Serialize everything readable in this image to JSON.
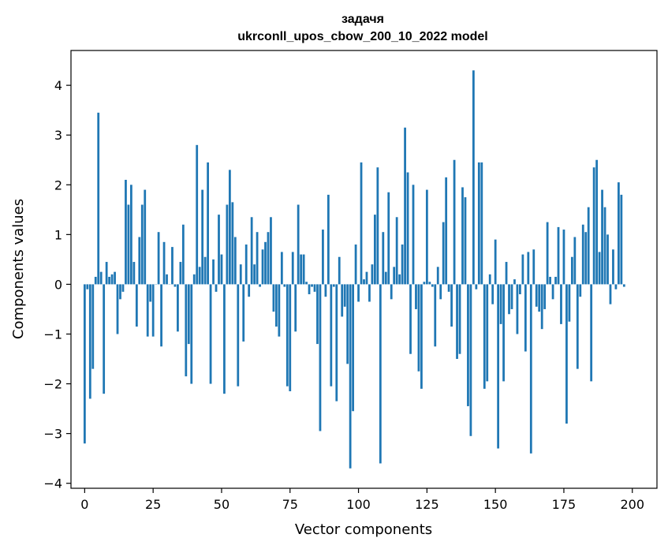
{
  "chart_data": {
    "type": "bar",
    "title_line1": "задачя",
    "title_line2": "ukrconll_upos_cbow_200_10_2022 model",
    "xlabel": "Vector components",
    "ylabel": "Components values",
    "xlim": [
      -5,
      209
    ],
    "ylim": [
      -4.1,
      4.7
    ],
    "xticks": [
      0,
      25,
      50,
      75,
      100,
      125,
      150,
      175,
      200
    ],
    "xtick_labels": [
      "0",
      "25",
      "50",
      "75",
      "100",
      "125",
      "150",
      "175",
      "200"
    ],
    "yticks": [
      -4,
      -3,
      -2,
      -1,
      0,
      1,
      2,
      3,
      4
    ],
    "ytick_labels": [
      "−4",
      "−3",
      "−2",
      "−1",
      "0",
      "1",
      "2",
      "3",
      "4"
    ],
    "grid": false,
    "bar_color": "#1f77b4",
    "values": [
      -3.2,
      -0.1,
      -2.3,
      -1.7,
      0.15,
      3.45,
      0.25,
      -2.2,
      0.45,
      0.15,
      0.2,
      0.25,
      -1.0,
      -0.3,
      -0.15,
      2.1,
      1.6,
      2.0,
      0.45,
      -0.85,
      0.95,
      1.6,
      1.9,
      -1.05,
      -0.35,
      -1.05,
      0.0,
      1.05,
      -1.25,
      0.85,
      0.2,
      0.0,
      0.75,
      -0.05,
      -0.95,
      0.45,
      1.2,
      -1.85,
      -1.2,
      -2.0,
      0.2,
      2.8,
      0.35,
      1.9,
      0.55,
      2.45,
      -2.0,
      0.5,
      -0.15,
      1.4,
      0.6,
      -2.2,
      1.6,
      2.3,
      1.65,
      0.95,
      -2.05,
      0.4,
      -1.15,
      0.8,
      -0.25,
      1.35,
      0.4,
      1.05,
      -0.05,
      0.7,
      0.85,
      1.05,
      1.35,
      -0.55,
      -0.85,
      -1.05,
      0.65,
      -0.05,
      -2.05,
      -2.15,
      0.65,
      -0.95,
      1.6,
      0.6,
      0.6,
      0.05,
      -0.2,
      -0.05,
      -0.15,
      -1.2,
      -2.95,
      1.1,
      -0.25,
      1.8,
      -2.05,
      -0.05,
      -2.35,
      0.55,
      -0.65,
      -0.45,
      -1.6,
      -3.7,
      -2.55,
      0.8,
      -0.35,
      2.45,
      0.1,
      0.25,
      -0.35,
      0.4,
      1.4,
      2.35,
      -3.6,
      1.05,
      0.25,
      1.85,
      -0.3,
      0.35,
      1.35,
      0.2,
      0.8,
      3.15,
      2.25,
      -1.4,
      2.0,
      -0.5,
      -1.75,
      -2.1,
      0.05,
      1.9,
      0.05,
      -0.05,
      -1.25,
      0.35,
      -0.3,
      1.25,
      2.15,
      -0.15,
      -0.85,
      2.5,
      -1.5,
      -1.4,
      1.95,
      1.75,
      -2.45,
      -3.05,
      4.3,
      -0.1,
      2.45,
      2.45,
      -2.1,
      -1.95,
      0.2,
      -0.4,
      0.9,
      -3.3,
      -0.8,
      -1.95,
      0.45,
      -0.6,
      -0.5,
      0.1,
      -1.0,
      -0.2,
      0.6,
      -1.35,
      0.65,
      -3.4,
      0.7,
      -0.45,
      -0.55,
      -0.9,
      -0.5,
      1.25,
      0.15,
      -0.3,
      0.15,
      1.15,
      -0.8,
      1.1,
      -2.8,
      -0.75,
      0.55,
      0.95,
      -1.7,
      -0.25,
      1.2,
      1.05,
      1.55,
      -1.95,
      2.35,
      2.5,
      0.65,
      1.9,
      1.55,
      1.0,
      -0.4,
      0.7,
      -0.1,
      2.05,
      1.8,
      -0.05
    ]
  }
}
